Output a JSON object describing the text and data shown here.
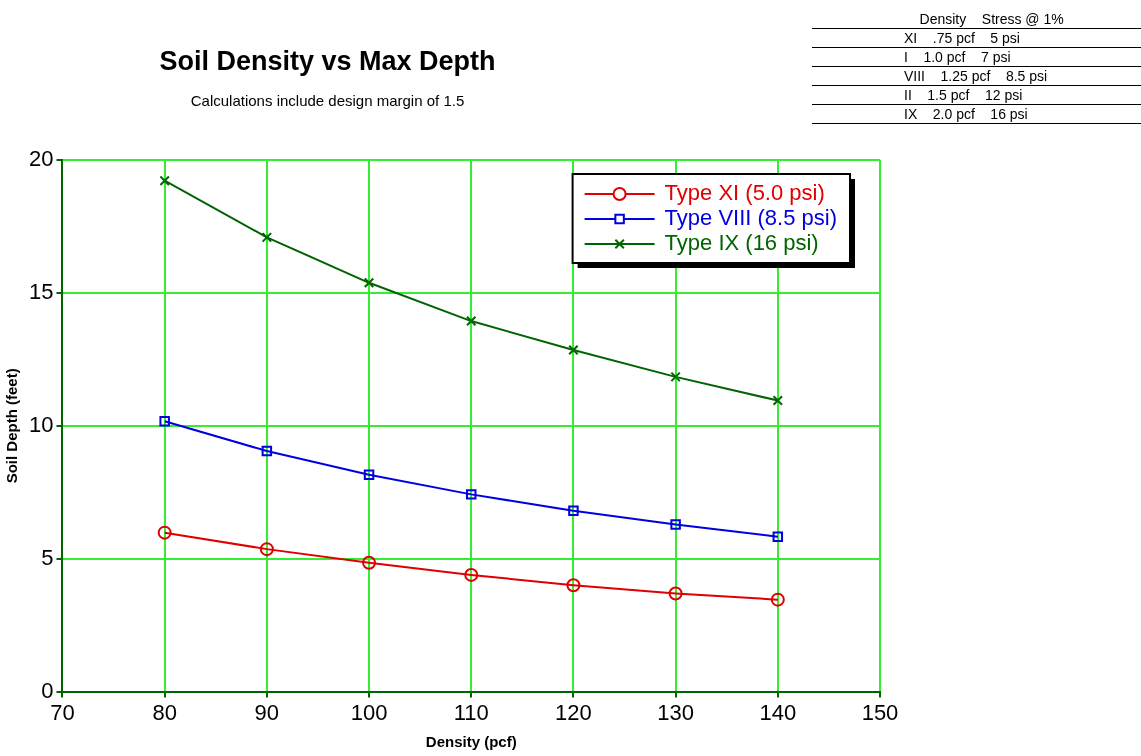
{
  "chart_data": [
    {
      "type": "line",
      "title": "Soil Density vs Max Depth",
      "subtitle": "Calculations include design margin of 1.5",
      "xlabel": "Density (pcf)",
      "ylabel": "Soil Depth (feet)",
      "x": [
        80,
        90,
        100,
        110,
        120,
        130,
        140
      ],
      "series": [
        {
          "name": "Type XI (5.0 psi)",
          "color": "#e00000",
          "marker": "circle",
          "values": [
            5.98,
            5.36,
            4.85,
            4.39,
            4.0,
            3.69,
            3.46
          ]
        },
        {
          "name": "Type VIII (8.5 psi)",
          "color": "#0000e0",
          "marker": "square",
          "values": [
            10.17,
            9.05,
            8.16,
            7.42,
            6.8,
            6.29,
            5.83
          ]
        },
        {
          "name": "Type IX (16 psi)",
          "color": "#006400",
          "marker": "cross",
          "values": [
            19.22,
            17.09,
            15.38,
            13.94,
            12.85,
            11.84,
            10.95
          ]
        }
      ],
      "xlim": [
        70,
        150
      ],
      "xticks": [
        70,
        80,
        90,
        100,
        110,
        120,
        130,
        140,
        150
      ],
      "ylim": [
        0,
        20
      ],
      "yticks": [
        0,
        5,
        10,
        15,
        20
      ],
      "grid": true,
      "legend": "top right",
      "line_style": "solid"
    },
    {
      "type": "other",
      "categories": [
        null,
        "Density",
        "Stress @ 1%"
      ],
      "y_categories": [
        "XI",
        "I",
        "VIII",
        "II",
        "IX"
      ],
      "cell_labels": [
        [
          ".75 pcf",
          "5 psi"
        ],
        [
          "1.0 pcf",
          "7 psi"
        ],
        [
          "1.25 pcf",
          "8.5 psi"
        ],
        [
          "1.5 pcf",
          "12 psi"
        ],
        [
          "2.0 pcf",
          "16 psi"
        ]
      ]
    }
  ]
}
